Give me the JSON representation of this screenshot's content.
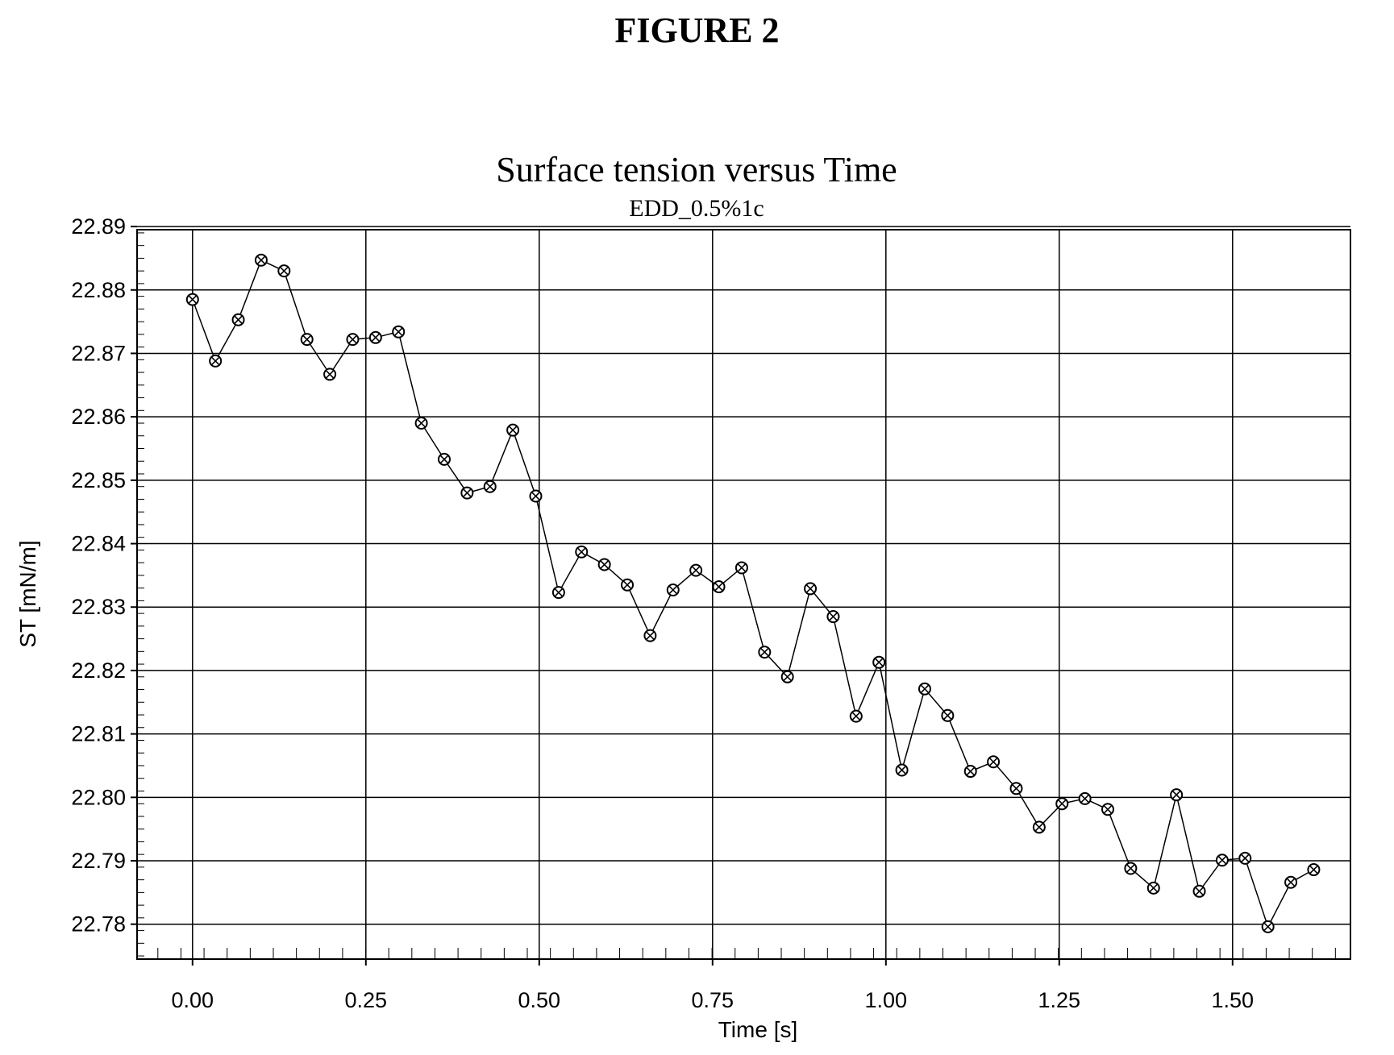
{
  "figure_label": "FIGURE 2",
  "chart_data": {
    "type": "line",
    "title": "Surface tension versus Time",
    "subtitle": "EDD_0.5%1c",
    "xlabel": "Time [s]",
    "ylabel": "ST [mN/m]",
    "xlim": [
      -0.08,
      1.67
    ],
    "ylim": [
      22.7745,
      22.8895
    ],
    "x_ticks": [
      "0.00",
      "0.25",
      "0.50",
      "0.75",
      "1.00",
      "1.25",
      "1.50"
    ],
    "y_ticks": [
      "22.78",
      "22.79",
      "22.80",
      "22.81",
      "22.82",
      "22.83",
      "22.84",
      "22.85",
      "22.86",
      "22.87",
      "22.88",
      "22.89"
    ],
    "grid": true,
    "marker": "circle-cross",
    "series": [
      {
        "x": [
          0.0,
          0.033,
          0.066,
          0.099,
          0.132,
          0.165,
          0.198,
          0.231,
          0.264,
          0.297,
          0.33,
          0.363,
          0.396,
          0.429,
          0.462,
          0.495,
          0.528,
          0.561,
          0.594,
          0.627,
          0.66,
          0.693,
          0.726,
          0.759,
          0.792,
          0.825,
          0.858,
          0.891,
          0.924,
          0.957,
          0.99,
          1.023,
          1.056,
          1.089,
          1.122,
          1.155,
          1.188,
          1.221,
          1.254,
          1.287,
          1.32,
          1.353,
          1.386,
          1.419,
          1.452,
          1.485,
          1.518,
          1.551,
          1.584,
          1.617
        ],
        "values": [
          22.8785,
          22.8688,
          22.8753,
          22.8847,
          22.883,
          22.8722,
          22.8667,
          22.8722,
          22.8725,
          22.8734,
          22.859,
          22.8533,
          22.848,
          22.849,
          22.8579,
          22.8475,
          22.8323,
          22.8387,
          22.8367,
          22.8335,
          22.8255,
          22.8327,
          22.8358,
          22.8332,
          22.8362,
          22.8229,
          22.819,
          22.8329,
          22.8285,
          22.8128,
          22.8213,
          22.8043,
          22.8171,
          22.8129,
          22.8041,
          22.8056,
          22.8014,
          22.7953,
          22.799,
          22.7998,
          22.7981,
          22.7888,
          22.7857,
          22.8004,
          22.7852,
          22.7901,
          22.7904,
          22.7796,
          22.7866,
          22.7886
        ]
      }
    ]
  }
}
